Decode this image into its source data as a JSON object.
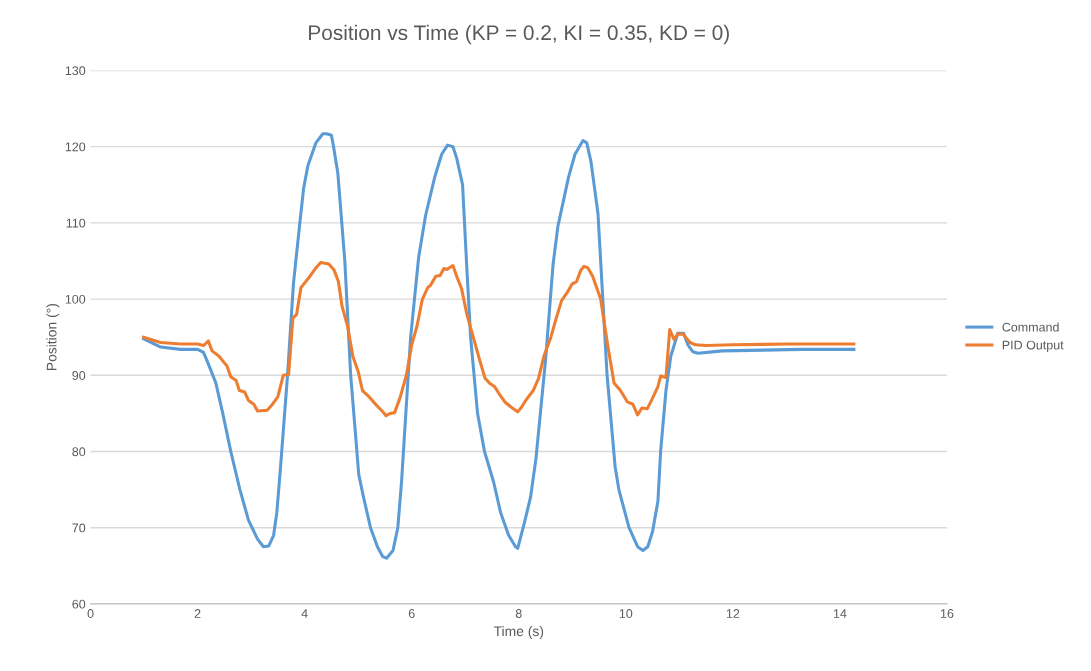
{
  "chart_data": {
    "type": "line",
    "title": "Position vs Time (KP = 0.2, KI = 0.35, KD = 0)",
    "xlabel": "Time (s)",
    "ylabel": "Position (°)",
    "xlim": [
      0,
      16
    ],
    "xticks": [
      0,
      2,
      4,
      6,
      8,
      10,
      12,
      14,
      16
    ],
    "ylim": [
      60,
      130
    ],
    "yticks": [
      60,
      70,
      80,
      90,
      100,
      110,
      120,
      130
    ],
    "grid": "y",
    "legend": "right",
    "marker": "none",
    "line_style": "solid",
    "series": [
      {
        "name": "Command",
        "color": "#5b9bd5",
        "x": [
          0.99,
          1.31,
          1.68,
          2.0,
          2.11,
          2.2,
          2.34,
          2.47,
          2.62,
          2.79,
          2.95,
          3.12,
          3.23,
          3.33,
          3.42,
          3.48,
          3.55,
          3.68,
          3.79,
          3.91,
          3.98,
          4.06,
          4.21,
          4.34,
          4.41,
          4.5,
          4.54,
          4.62,
          4.75,
          4.86,
          4.93,
          5.01,
          5.1,
          5.23,
          5.36,
          5.46,
          5.53,
          5.65,
          5.74,
          5.81,
          5.89,
          5.98,
          6.13,
          6.26,
          6.43,
          6.56,
          6.67,
          6.77,
          6.84,
          6.95,
          7.03,
          7.1,
          7.23,
          7.36,
          7.53,
          7.66,
          7.81,
          7.94,
          7.98,
          8.1,
          8.22,
          8.32,
          8.5,
          8.64,
          8.73,
          8.93,
          9.05,
          9.2,
          9.27,
          9.35,
          9.48,
          9.65,
          9.8,
          9.87,
          10.06,
          10.22,
          10.32,
          10.41,
          10.5,
          10.6,
          10.65,
          10.75,
          10.84,
          10.97,
          11.08,
          11.16,
          11.25,
          11.35,
          11.8,
          13.3,
          14.26
        ],
        "values": [
          94.8,
          93.7,
          93.4,
          93.4,
          93.0,
          91.5,
          89,
          85,
          80,
          75,
          71,
          68.5,
          67.5,
          67.6,
          69,
          72,
          78,
          90,
          102,
          110,
          114.5,
          117.5,
          120.5,
          121.7,
          121.7,
          121.5,
          120,
          116.5,
          105,
          90,
          84,
          77,
          74,
          70,
          67.5,
          66.2,
          66,
          67,
          70,
          76,
          85,
          95,
          105.5,
          111,
          116,
          119,
          120.2,
          120,
          118.5,
          115,
          104,
          95,
          85,
          80,
          76,
          72,
          69,
          67.5,
          67.3,
          70.5,
          74,
          79,
          92,
          104.5,
          109.5,
          116,
          119,
          120.8,
          120.5,
          118,
          111.2,
          90,
          78,
          75,
          70,
          67.5,
          67.0,
          67.5,
          69.5,
          73.5,
          80,
          88,
          92.5,
          95.5,
          95.5,
          94,
          93.1,
          92.9,
          93.2,
          93.4,
          93.4
        ]
      },
      {
        "name": "PID Output",
        "color": "#ed7d31",
        "x": [
          0.99,
          1.31,
          1.68,
          2.0,
          2.11,
          2.2,
          2.27,
          2.4,
          2.55,
          2.62,
          2.72,
          2.78,
          2.88,
          2.95,
          3.05,
          3.12,
          3.3,
          3.4,
          3.5,
          3.6,
          3.7,
          3.78,
          3.85,
          3.93,
          4.1,
          4.2,
          4.3,
          4.45,
          4.55,
          4.63,
          4.7,
          4.8,
          4.9,
          5.0,
          5.08,
          5.2,
          5.35,
          5.45,
          5.52,
          5.6,
          5.68,
          5.78,
          5.9,
          6.0,
          6.1,
          6.2,
          6.3,
          6.35,
          6.45,
          6.53,
          6.6,
          6.66,
          6.77,
          6.85,
          6.93,
          7.03,
          7.13,
          7.27,
          7.37,
          7.45,
          7.55,
          7.64,
          7.74,
          7.86,
          7.98,
          8.05,
          8.12,
          8.27,
          8.37,
          8.47,
          8.6,
          8.7,
          8.8,
          8.9,
          9.0,
          9.08,
          9.16,
          9.22,
          9.29,
          9.38,
          9.53,
          9.66,
          9.78,
          9.9,
          10.03,
          10.13,
          10.22,
          10.3,
          10.4,
          10.5,
          10.6,
          10.65,
          10.75,
          10.82,
          10.9,
          10.97,
          11.07,
          11.2,
          11.3,
          11.5,
          12.0,
          13.0,
          14.26
        ],
        "values": [
          95.0,
          94.3,
          94.1,
          94.1,
          93.9,
          94.5,
          93.2,
          92.5,
          91.2,
          89.8,
          89.3,
          88,
          87.8,
          86.7,
          86.2,
          85.3,
          85.4,
          86.2,
          87.2,
          90,
          90.1,
          97.5,
          98,
          101.5,
          103,
          104,
          104.8,
          104.6,
          103.8,
          102.3,
          99,
          96.5,
          92.5,
          90.5,
          88,
          87.2,
          86,
          85.3,
          84.7,
          85,
          85.1,
          87,
          90,
          94,
          96.5,
          100,
          101.5,
          101.8,
          103,
          103.1,
          104,
          103.9,
          104.4,
          102.8,
          101.4,
          98,
          95.5,
          92,
          89.6,
          89,
          88.5,
          87.5,
          86.5,
          85.8,
          85.2,
          85.8,
          86.6,
          88,
          89.6,
          92.5,
          95,
          97.5,
          99.8,
          100.8,
          102,
          102.3,
          103.8,
          104.3,
          104.1,
          103,
          100,
          94,
          89,
          88,
          86.5,
          86.2,
          84.8,
          85.7,
          85.6,
          87,
          88.5,
          89.9,
          89.7,
          96,
          94.7,
          95.4,
          95.4,
          94.3,
          94,
          93.9,
          94.0,
          94.1,
          94.1
        ]
      }
    ]
  }
}
